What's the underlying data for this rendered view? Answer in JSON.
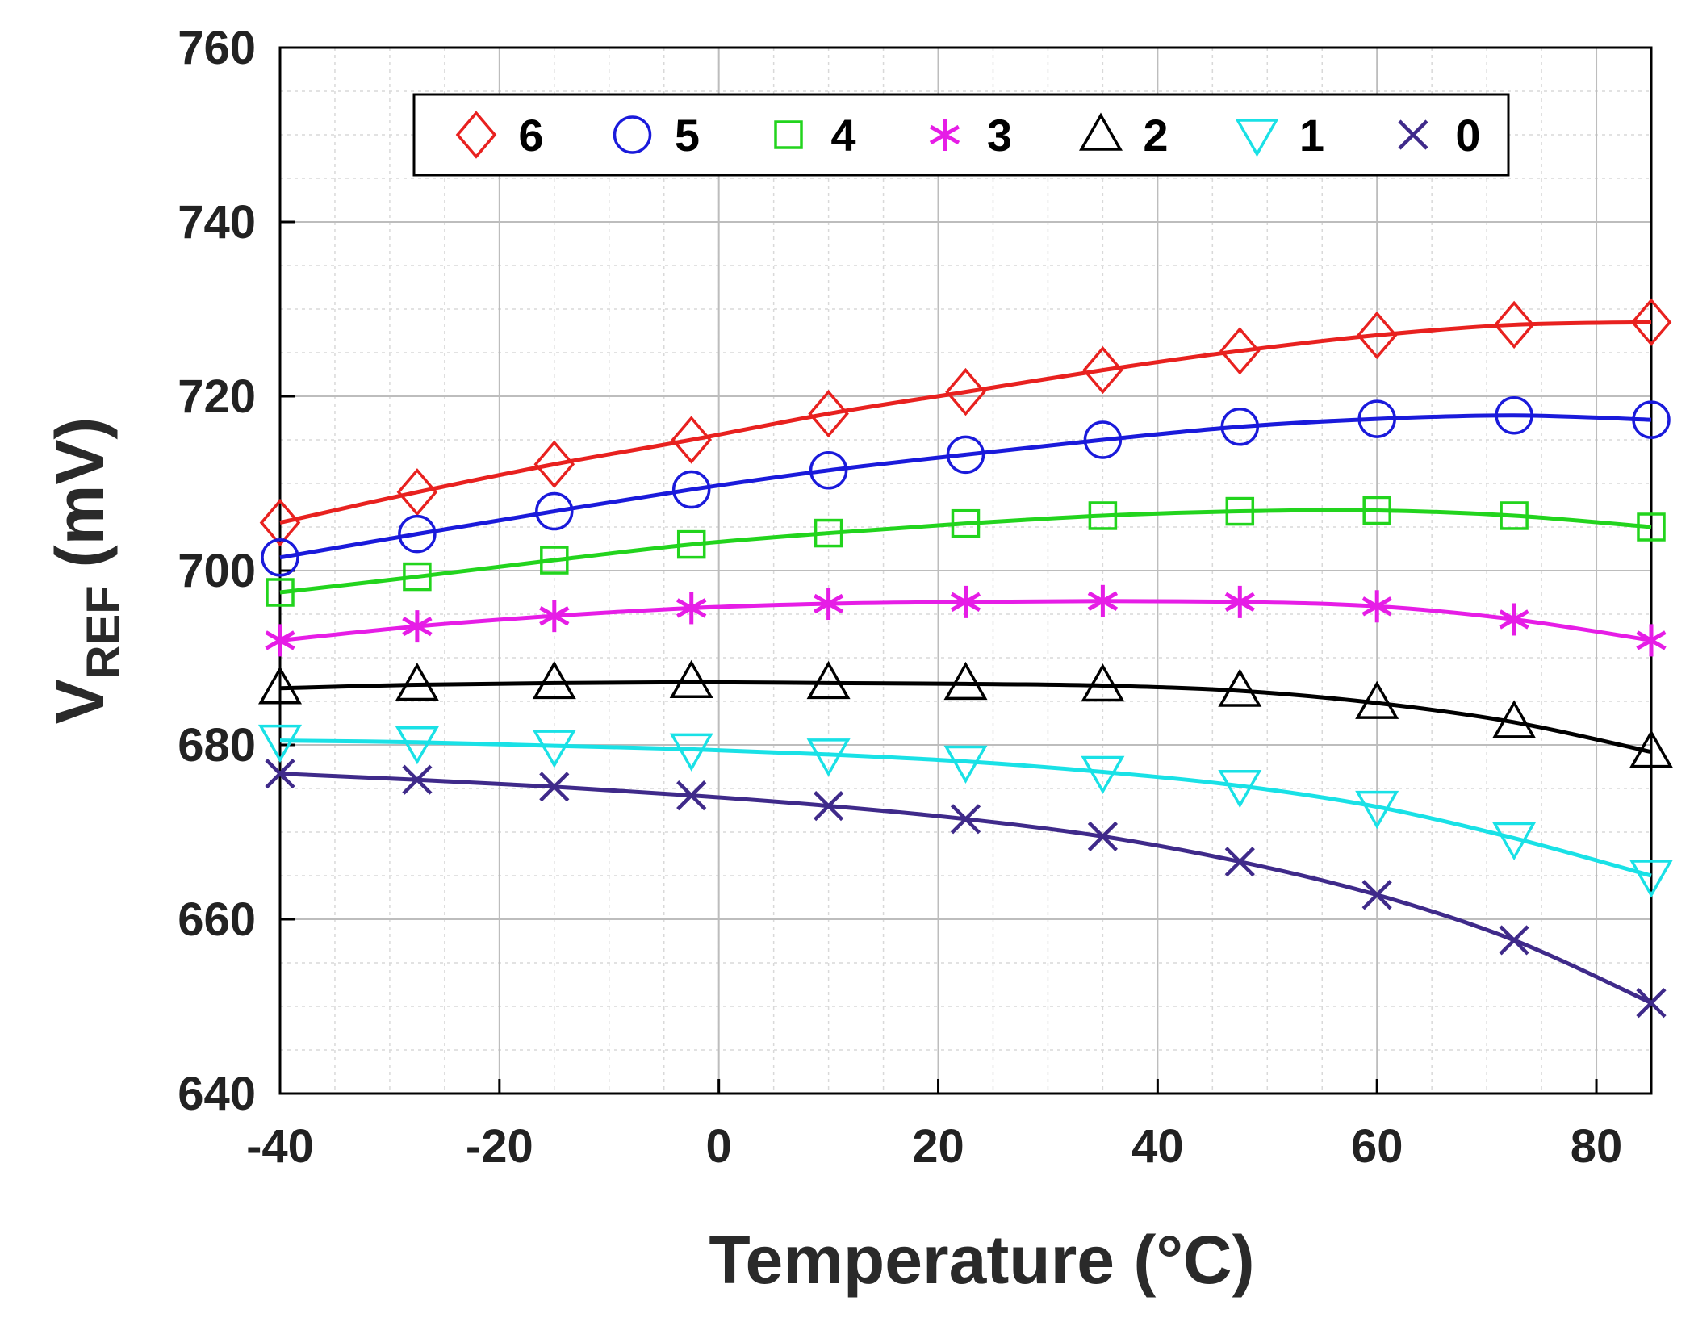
{
  "chart_data": {
    "type": "line",
    "title": "",
    "xlabel": "Temperature (°C)",
    "ylabel_main": "V",
    "ylabel_sub": "REF",
    "ylabel_unit": "(mV)",
    "xlim": [
      -40,
      85
    ],
    "ylim": [
      640,
      760
    ],
    "xticks": [
      -40,
      -20,
      0,
      20,
      40,
      60,
      80
    ],
    "yticks": [
      640,
      660,
      680,
      700,
      720,
      740,
      760
    ],
    "grid": true,
    "minor_grid": true,
    "legend_position": "top",
    "x": [
      -40,
      -27.5,
      -15,
      -2.5,
      10,
      22.5,
      35,
      47.5,
      60,
      72.5,
      85
    ],
    "series": [
      {
        "name": "6",
        "color": "#e8211f",
        "marker": "diamond",
        "values": [
          705.5,
          709,
          712.2,
          715,
          718,
          720.5,
          723,
          725.2,
          727,
          728.2,
          728.5
        ]
      },
      {
        "name": "5",
        "color": "#1a1adb",
        "marker": "circle",
        "values": [
          701.5,
          704.2,
          706.8,
          709.3,
          711.5,
          713.3,
          715,
          716.5,
          717.4,
          717.8,
          717.3
        ]
      },
      {
        "name": "4",
        "color": "#22d41d",
        "marker": "square",
        "values": [
          697.5,
          699.3,
          701.2,
          703,
          704.3,
          705.4,
          706.3,
          706.8,
          706.9,
          706.3,
          705
        ]
      },
      {
        "name": "3",
        "color": "#e61de6",
        "marker": "star",
        "values": [
          692,
          693.6,
          694.8,
          695.7,
          696.2,
          696.4,
          696.5,
          696.4,
          695.9,
          694.4,
          692
        ]
      },
      {
        "name": "2",
        "color": "#000000",
        "marker": "triangle-up",
        "values": [
          686.5,
          686.9,
          687.1,
          687.2,
          687.1,
          687,
          686.8,
          686.2,
          684.8,
          682.6,
          679.2
        ]
      },
      {
        "name": "1",
        "color": "#19e1e6",
        "marker": "triangle-down",
        "values": [
          680.5,
          680.3,
          679.9,
          679.5,
          678.9,
          678.1,
          676.9,
          675.3,
          672.9,
          669.3,
          665
        ]
      },
      {
        "name": "0",
        "color": "#3f2a8a",
        "marker": "x",
        "values": [
          676.7,
          676,
          675.2,
          674.2,
          673,
          671.5,
          669.5,
          666.6,
          662.8,
          657.6,
          650.4
        ]
      }
    ]
  }
}
